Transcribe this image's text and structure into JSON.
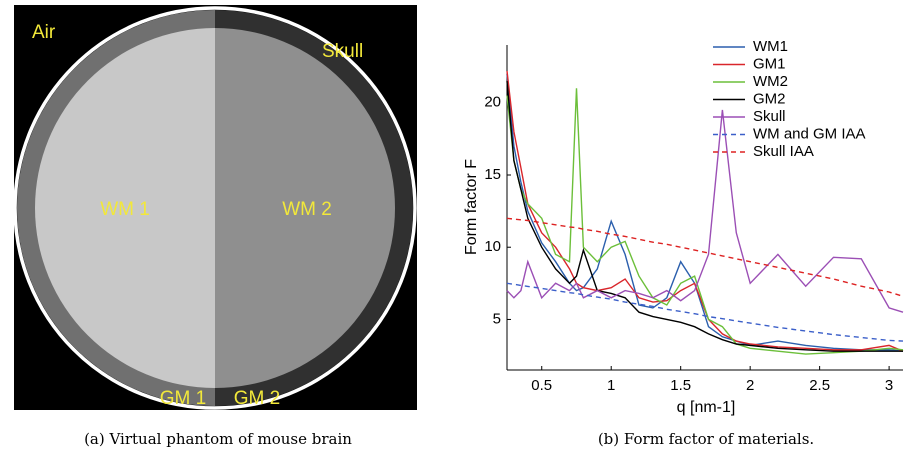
{
  "panel_a": {
    "labels": {
      "air": "Air",
      "skull": "Skull",
      "wm1": "WM 1",
      "wm2": "WM 2",
      "gm1": "GM 1",
      "gm2": "GM 2"
    },
    "caption": "(a) Virtual phantom of mouse brain"
  },
  "chart_data": {
    "type": "line",
    "caption": "(b) Form factor of materials.",
    "x_label": "q [nm-1]",
    "y_label": "Form factor F",
    "x": [
      0.25,
      0.3,
      0.35,
      0.4,
      0.5,
      0.6,
      0.7,
      0.75,
      0.8,
      0.9,
      1.0,
      1.1,
      1.2,
      1.3,
      1.4,
      1.5,
      1.6,
      1.7,
      1.8,
      1.9,
      2.0,
      2.2,
      2.4,
      2.6,
      2.8,
      3.0,
      3.1
    ],
    "series": [
      {
        "name": "WM1",
        "color": "#2b5fad",
        "dashed": false,
        "values": [
          22,
          17,
          14.5,
          12.5,
          10.3,
          9,
          7.5,
          7,
          7.2,
          8.5,
          11.8,
          9.5,
          6,
          5.8,
          6.5,
          9,
          7.5,
          4.5,
          3.8,
          3.5,
          3.2,
          3.5,
          3.2,
          3,
          2.9,
          2.9,
          2.8
        ]
      },
      {
        "name": "GM1",
        "color": "#d9262b",
        "dashed": false,
        "values": [
          22.2,
          18,
          15.5,
          13,
          11,
          10,
          8.5,
          7.5,
          7.2,
          7,
          7.2,
          7.8,
          6.5,
          6.2,
          6.3,
          7,
          7.5,
          5,
          4,
          3.5,
          3.3,
          3.1,
          3,
          2.9,
          2.9,
          3.2,
          2.8
        ]
      },
      {
        "name": "WM2",
        "color": "#6cbf3a",
        "dashed": false,
        "values": [
          20.5,
          16,
          14,
          13,
          12,
          9.5,
          9,
          21,
          10,
          9,
          10,
          10.4,
          8,
          6.5,
          6,
          7.5,
          8,
          5,
          4.5,
          3.3,
          3,
          2.8,
          2.6,
          2.7,
          2.8,
          3,
          2.9
        ]
      },
      {
        "name": "GM2",
        "color": "#000000",
        "dashed": false,
        "values": [
          21.5,
          16,
          14,
          12,
          10,
          8.5,
          7.5,
          8,
          9.8,
          7,
          6.8,
          6.5,
          5.5,
          5.2,
          5,
          4.8,
          4.5,
          4,
          3.6,
          3.3,
          3.2,
          3,
          2.9,
          2.8,
          2.8,
          2.8,
          2.8
        ]
      },
      {
        "name": "Skull",
        "color": "#9b4fb5",
        "dashed": false,
        "values": [
          7,
          6.5,
          7,
          9,
          6.5,
          7.5,
          7,
          7.5,
          6.5,
          7,
          6.5,
          7,
          6.8,
          6.5,
          7,
          6.3,
          7,
          9.5,
          19.5,
          11,
          7.5,
          9.5,
          7.3,
          9.3,
          9.2,
          5.8,
          5.5
        ]
      },
      {
        "name": "WM and GM IAA",
        "color": "#3b5fc9",
        "dashed": true,
        "values": [
          7.5,
          7.43,
          7.36,
          7.29,
          7.15,
          7,
          6.85,
          6.8,
          6.7,
          6.55,
          6.4,
          6.2,
          6.05,
          5.9,
          5.7,
          5.55,
          5.4,
          5.2,
          5.05,
          4.9,
          4.75,
          4.45,
          4.2,
          3.95,
          3.75,
          3.55,
          3.5
        ]
      },
      {
        "name": "Skull IAA",
        "color": "#dd2222",
        "dashed": true,
        "values": [
          12,
          11.95,
          11.9,
          11.85,
          11.7,
          11.55,
          11.4,
          11.35,
          11.25,
          11.1,
          10.9,
          10.75,
          10.55,
          10.35,
          10.2,
          10,
          9.8,
          9.6,
          9.4,
          9.2,
          9,
          8.6,
          8.2,
          7.8,
          7.3,
          6.9,
          6.6
        ]
      }
    ],
    "xlim": [
      0.25,
      3.1
    ],
    "xticks": [
      0.5,
      1,
      1.5,
      2,
      2.5,
      3
    ],
    "ylim": [
      1.5,
      24
    ],
    "yticks": [
      5,
      10,
      15,
      20
    ],
    "grid": false,
    "legend": "upper right"
  }
}
